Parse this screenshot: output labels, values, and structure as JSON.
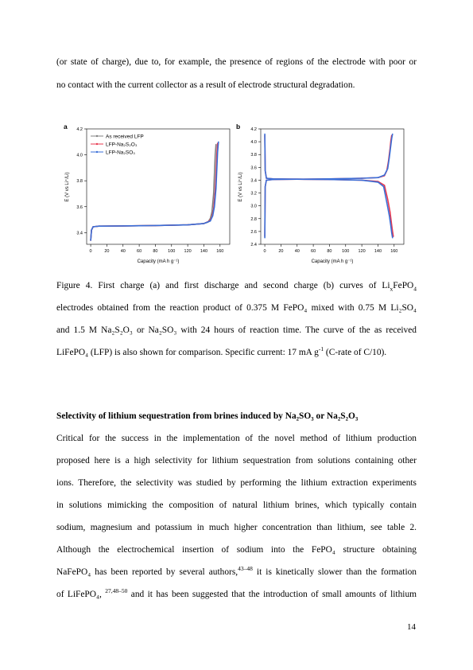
{
  "text": {
    "p1_l1": "(or state of charge), due to, for example, the presence of regions of the electrode with poor or",
    "p1_l2": "no contact with the current collector as a result of electrode structural degradation.",
    "cap_l1_a": "Figure 4. First charge (a) and first discharge and second charge (b) curves of Li",
    "cap_l1_x": "x",
    "cap_l1_b": "FePO",
    "cap_l1_4": "4",
    "cap_l2": "electrodes obtained from the reaction product of  0.375 M FePO₄ mixed with 0.75 M Li₂SO₄",
    "cap_l3": "and 1.5 M Na₂S₂O₃ or Na₂SO₃ with 24 hours of reaction time. The curve of the as received",
    "cap_l4_a": "LiFePO₄ (LFP) is also shown for comparison. Specific current: 17 mA g",
    "cap_l4_sup": "-1",
    "cap_l4_b": " (C-rate of C/10).",
    "heading": "Selectivity of lithium sequestration from brines induced by Na₂SO₃ or Na₂S₂O₃",
    "p2_l1": "Critical for the success in the implementation of the novel method of lithium production",
    "p2_l2": "proposed here is a high selectivity for lithium sequestration from solutions containing other",
    "p2_l3": "ions. Therefore, the selectivity was studied by performing the lithium extraction experiments",
    "p2_l4": "in solutions mimicking the composition of natural lithium brines, which typically contain",
    "p2_l5": "sodium, magnesium and potassium in much higher concentration than lithium, see table 2.",
    "p2_l6": "Although the electrochemical insertion of sodium into the FePO₄ structure obtaining",
    "p2_l7_a": "NaFePO₄ has been reported by several authors,",
    "p2_l7_sup": "43–48",
    "p2_l7_b": " it is kinetically slower than the formation",
    "p2_l8_a": "of LiFePO₄, ",
    "p2_l8_sup": "27,48–50",
    "p2_l8_b": " and it has been suggested that the introduction of small amounts of lithium",
    "page_number": "14"
  },
  "colors": {
    "as_received": "#808080",
    "na2s2o3": "#e8384f",
    "na2so3": "#3a6fd8"
  },
  "chart_data": [
    {
      "type": "line",
      "panel_label": "a",
      "xlabel": "Capacity (mA h g⁻¹)",
      "ylabel": "E (V vs Li⁺/Li)",
      "xlim": [
        -5,
        172
      ],
      "ylim": [
        3.31,
        4.2
      ],
      "xticks": [
        0,
        20,
        40,
        60,
        80,
        100,
        120,
        140,
        160
      ],
      "yticks": [
        3.4,
        3.6,
        3.8,
        4.0,
        4.2
      ],
      "ytick_labels": [
        "3.4",
        "3.6",
        "3.8",
        "4.0",
        "4.2"
      ],
      "legend": [
        "As received LFP",
        "LFP-Na₂S₂O₃",
        "LFP-Na₂SO₃"
      ],
      "legend_position": "top-left",
      "series": [
        {
          "name": "As received LFP",
          "color": "#808080",
          "x": [
            0,
            1,
            3,
            10,
            40,
            80,
            120,
            140,
            145,
            148,
            150,
            152,
            153,
            154,
            155
          ],
          "y": [
            3.34,
            3.42,
            3.445,
            3.45,
            3.452,
            3.455,
            3.46,
            3.47,
            3.48,
            3.51,
            3.56,
            3.7,
            3.85,
            4.0,
            4.08
          ]
        },
        {
          "name": "LFP-Na₂S₂O₃",
          "color": "#e8384f",
          "x": [
            0,
            1,
            3,
            10,
            40,
            80,
            120,
            140,
            147,
            150,
            152,
            154,
            155,
            156,
            157
          ],
          "y": [
            3.34,
            3.42,
            3.445,
            3.45,
            3.452,
            3.455,
            3.46,
            3.47,
            3.49,
            3.52,
            3.58,
            3.72,
            3.85,
            4.0,
            4.09
          ]
        },
        {
          "name": "LFP-Na₂SO₃",
          "color": "#3a6fd8",
          "x": [
            0,
            1,
            3,
            10,
            40,
            80,
            120,
            140,
            148,
            151,
            153,
            155,
            156,
            157,
            158
          ],
          "y": [
            3.34,
            3.42,
            3.445,
            3.45,
            3.452,
            3.455,
            3.46,
            3.47,
            3.49,
            3.53,
            3.6,
            3.74,
            3.88,
            4.02,
            4.1
          ]
        }
      ]
    },
    {
      "type": "line",
      "panel_label": "b",
      "xlabel": "Capacity (mA h g⁻¹)",
      "ylabel": "E (V vs Li⁺/Li)",
      "xlim": [
        -5,
        172
      ],
      "ylim": [
        2.4,
        4.2
      ],
      "xticks": [
        0,
        20,
        40,
        60,
        80,
        100,
        120,
        140,
        160
      ],
      "yticks": [
        2.4,
        2.6,
        2.8,
        3.0,
        3.2,
        3.4,
        3.6,
        3.8,
        4.0,
        4.2
      ],
      "ytick_labels": [
        "2.4",
        "2.6",
        "2.8",
        "3.0",
        "3.2",
        "3.4",
        "3.6",
        "3.8",
        "4.0",
        "4.2"
      ],
      "series": [
        {
          "name": "",
          "color": "#e8384f",
          "x": [
            0,
            0.5,
            2,
            10,
            40,
            80,
            120,
            140,
            148,
            152,
            155,
            157,
            158,
            159
          ],
          "y": [
            4.1,
            3.55,
            3.43,
            3.42,
            3.415,
            3.41,
            3.4,
            3.38,
            3.32,
            3.1,
            2.9,
            2.7,
            2.6,
            2.52
          ]
        },
        {
          "name": "",
          "color": "#e8384f",
          "x": [
            0,
            0.5,
            2,
            10,
            40,
            80,
            120,
            140,
            148,
            151,
            153,
            155,
            156,
            157
          ],
          "y": [
            2.52,
            3.3,
            3.4,
            3.41,
            3.415,
            3.42,
            3.43,
            3.44,
            3.47,
            3.55,
            3.7,
            3.9,
            4.02,
            4.1
          ]
        },
        {
          "name": "",
          "color": "#3a6fd8",
          "x": [
            0,
            0.5,
            2,
            10,
            40,
            80,
            120,
            140,
            147,
            151,
            154,
            156,
            157,
            158
          ],
          "y": [
            4.12,
            3.55,
            3.43,
            3.42,
            3.415,
            3.41,
            3.4,
            3.37,
            3.3,
            3.05,
            2.85,
            2.68,
            2.58,
            2.5
          ]
        },
        {
          "name": "",
          "color": "#3a6fd8",
          "x": [
            0,
            0.5,
            2,
            10,
            40,
            80,
            120,
            140,
            148,
            152,
            154,
            156,
            157,
            158
          ],
          "y": [
            2.5,
            3.3,
            3.4,
            3.41,
            3.415,
            3.42,
            3.43,
            3.44,
            3.48,
            3.58,
            3.75,
            3.95,
            4.05,
            4.12
          ]
        }
      ]
    }
  ]
}
